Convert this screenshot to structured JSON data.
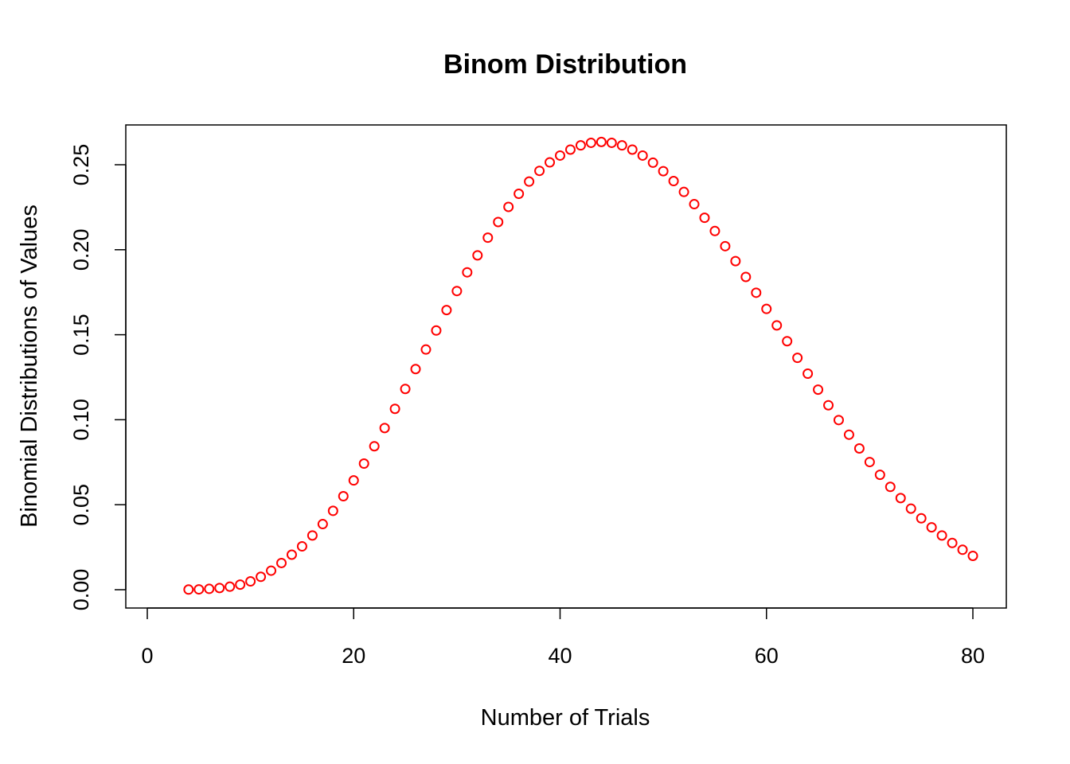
{
  "chart_data": {
    "type": "scatter",
    "title": "Binom Distribution",
    "xlabel": "Number of Trials",
    "ylabel": "Binomial Distributions of Values",
    "xlim": [
      0,
      80
    ],
    "ylim": [
      0,
      0.25
    ],
    "x_ticks": [
      0,
      20,
      40,
      60,
      80
    ],
    "x_tick_labels": [
      "0",
      "20",
      "40",
      "60",
      "80"
    ],
    "y_ticks": [
      0,
      0.05,
      0.1,
      0.15,
      0.2,
      0.25
    ],
    "y_tick_labels": [
      "0.00",
      "0.05",
      "0.10",
      "0.15",
      "0.20",
      "0.25"
    ],
    "grid": false,
    "marker": "open-circle",
    "color": "#ff0000",
    "x": [
      4,
      5,
      6,
      7,
      8,
      9,
      10,
      11,
      12,
      13,
      14,
      15,
      16,
      17,
      18,
      19,
      20,
      21,
      22,
      23,
      24,
      25,
      26,
      27,
      28,
      29,
      30,
      31,
      32,
      33,
      34,
      35,
      36,
      37,
      38,
      39,
      40,
      41,
      42,
      43,
      44,
      45,
      46,
      47,
      48,
      49,
      50,
      51,
      52,
      53,
      54,
      55,
      56,
      57,
      58,
      59,
      60,
      61,
      62,
      63,
      64,
      65,
      66,
      67,
      68,
      69,
      70,
      71,
      72,
      73,
      74,
      75,
      76,
      77,
      78,
      79,
      80
    ],
    "y": [
      0.0001,
      0.0002,
      0.0005,
      0.001,
      0.0018,
      0.003,
      0.0049,
      0.0076,
      0.0112,
      0.0157,
      0.0206,
      0.0255,
      0.0319,
      0.0386,
      0.0464,
      0.055,
      0.0643,
      0.0742,
      0.0844,
      0.0951,
      0.1064,
      0.1181,
      0.1298,
      0.1413,
      0.1525,
      0.1645,
      0.1757,
      0.1867,
      0.1967,
      0.2071,
      0.2163,
      0.2252,
      0.2329,
      0.2401,
      0.2464,
      0.2514,
      0.2554,
      0.2589,
      0.2614,
      0.2629,
      0.2634,
      0.2629,
      0.2614,
      0.2589,
      0.2554,
      0.2512,
      0.2462,
      0.2404,
      0.234,
      0.2268,
      0.2188,
      0.211,
      0.2021,
      0.1933,
      0.184,
      0.1747,
      0.1652,
      0.1555,
      0.1462,
      0.1364,
      0.1271,
      0.1177,
      0.1085,
      0.0998,
      0.0912,
      0.0831,
      0.0751,
      0.0676,
      0.0605,
      0.0539,
      0.0477,
      0.042,
      0.0367,
      0.0319,
      0.0275,
      0.0235,
      0.0199
    ]
  }
}
